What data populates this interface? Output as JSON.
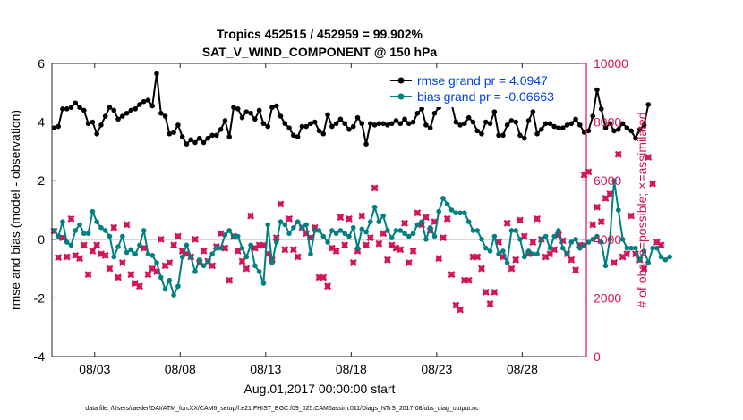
{
  "chart_data": {
    "type": "line",
    "title_line1": "Tropics 452515 / 452959 = 99.902%",
    "title_line2": "SAT_V_WIND_COMPONENT @ 150 hPa",
    "xlabel": "Aug.01,2017 00:00:00 start",
    "ylabel_left": "rmse and bias (model - observation)",
    "ylabel_right": "# of obs: o=possible; ×=assimilated",
    "ylim_left": [
      -4,
      6
    ],
    "yticks_left": [
      -4,
      -2,
      0,
      2,
      4,
      6
    ],
    "ylim_right": [
      0,
      10000
    ],
    "yticks_right": [
      0,
      2000,
      4000,
      6000,
      8000,
      10000
    ],
    "xlim": [
      0.5,
      31.75
    ],
    "xticks": [
      {
        "value": 3,
        "label": "08/03"
      },
      {
        "value": 8,
        "label": "08/08"
      },
      {
        "value": 13,
        "label": "08/13"
      },
      {
        "value": 18,
        "label": "08/18"
      },
      {
        "value": 23,
        "label": "08/23"
      },
      {
        "value": 28,
        "label": "08/28"
      }
    ],
    "x_start": 0.625,
    "x_step": 0.25,
    "colors": {
      "rmse": "#000000",
      "bias": "#008080",
      "obs": "#d4145a",
      "right_axis": "#d4145a",
      "zero_line": "#b0b0b0",
      "legend_text": "#0044dd"
    },
    "legend": [
      "rmse grand pr = 4.0947",
      "bias grand pr = -0.06663"
    ],
    "series": [
      {
        "name": "rmse",
        "values": [
          3.8,
          3.85,
          4.45,
          4.45,
          4.5,
          4.65,
          4.5,
          4.4,
          3.95,
          4.0,
          3.6,
          3.9,
          4.2,
          4.5,
          4.4,
          4.1,
          4.2,
          4.3,
          4.4,
          4.45,
          4.6,
          4.7,
          4.75,
          4.55,
          5.65,
          4.3,
          4.2,
          3.6,
          3.65,
          3.9,
          3.5,
          3.25,
          3.4,
          3.3,
          3.45,
          3.3,
          3.45,
          3.55,
          3.55,
          3.75,
          4.05,
          3.5,
          4.5,
          4.45,
          4.15,
          4.35,
          4.3,
          4.1,
          4.4,
          3.95,
          3.85,
          4.5,
          4.55,
          4.2,
          3.95,
          3.8,
          3.55,
          3.5,
          3.85,
          3.85,
          3.95,
          4.0,
          3.7,
          3.6,
          4.25,
          3.85,
          3.95,
          4.1,
          3.95,
          3.75,
          3.85,
          4.15,
          3.95,
          3.25,
          3.95,
          3.9,
          3.95,
          3.95,
          3.9,
          3.95,
          4.05,
          3.95,
          4.1,
          3.95,
          4.0,
          4.3,
          4.45,
          3.9,
          3.8,
          4.3,
          4.5,
          4.75,
          5.05,
          4.6,
          4.0,
          3.9,
          3.95,
          4.15,
          4.0,
          3.7,
          3.6,
          4.0,
          3.95,
          4.35,
          3.55,
          3.55,
          3.9,
          4.05,
          4.0,
          3.55,
          3.45,
          4.05,
          4.35,
          3.6,
          3.75,
          3.95,
          3.95,
          3.85,
          3.8,
          3.8,
          3.9,
          3.95,
          4.1,
          3.9,
          3.65,
          3.7,
          4.2,
          5.1,
          4.45,
          3.8,
          3.95,
          3.7,
          3.75,
          3.95,
          3.8,
          3.7,
          3.45,
          3.75,
          3.9,
          4.6
        ]
      },
      {
        "name": "bias",
        "values": [
          0.3,
          0.1,
          0.6,
          -0.1,
          -0.2,
          0.3,
          0.5,
          0.2,
          0.2,
          0.95,
          0.6,
          0.4,
          0.3,
          0.1,
          -0.6,
          -0.25,
          0.1,
          -0.45,
          -0.35,
          -0.5,
          -0.2,
          0.3,
          -0.5,
          -0.55,
          -0.8,
          -1.3,
          -1.7,
          -1.4,
          -1.9,
          -1.6,
          -0.6,
          -0.2,
          -0.6,
          -1.1,
          -0.7,
          -0.9,
          -0.75,
          -0.5,
          -0.3,
          -0.3,
          0.15,
          0.3,
          0.1,
          0.1,
          -0.3,
          -0.6,
          -0.2,
          -0.9,
          -1.1,
          -1.5,
          0.5,
          -0.8,
          -0.1,
          0.6,
          0.5,
          0.2,
          0.4,
          0.6,
          0.4,
          0.5,
          -0.5,
          0.3,
          0.3,
          0.1,
          -0.1,
          0.3,
          0.2,
          0.3,
          0.2,
          0.1,
          0.4,
          -0.3,
          0.35,
          0.25,
          0.6,
          1.1,
          0.6,
          0.8,
          0.3,
          0.05,
          0.3,
          0.3,
          0.2,
          0.1,
          0.2,
          0.5,
          0.6,
          0.0,
          0.4,
          0.1,
          0.95,
          1.4,
          1.2,
          1.0,
          0.9,
          0.9,
          0.9,
          0.6,
          0.3,
          0.3,
          0.0,
          -0.3,
          -0.4,
          0.1,
          -0.5,
          -0.4,
          -0.8,
          0.3,
          0.3,
          0.0,
          -0.6,
          -0.4,
          -0.5,
          -0.5,
          0.0,
          0.1,
          -0.3,
          0.1,
          0.3,
          -0.3,
          -0.5,
          -0.1,
          0.0,
          -0.3,
          -0.2,
          -0.1,
          0.0,
          0.1,
          -0.1,
          -0.9,
          0.0,
          2.0,
          1.0,
          0.0,
          -0.3,
          -0.3,
          -0.3,
          -0.7,
          -0.4,
          -0.8,
          -0.3,
          -0.3,
          -0.6,
          -0.7,
          -0.6
        ]
      },
      {
        "name": "obs_count",
        "values": [
          4280,
          3380,
          4050,
          3400,
          4700,
          3450,
          3350,
          3800,
          2800,
          3600,
          3800,
          3500,
          3450,
          3000,
          4400,
          2700,
          3200,
          4500,
          2800,
          2500,
          2400,
          3700,
          2800,
          3000,
          2900,
          4000,
          3100,
          3200,
          3800,
          4100,
          3600,
          3500,
          3400,
          4000,
          3200,
          3600,
          3250,
          3100,
          3750,
          4200,
          3700,
          2600,
          4100,
          3600,
          3250,
          3000,
          4800,
          3700,
          3800,
          3800,
          3500,
          3300,
          4050,
          5200,
          3650,
          4700,
          3650,
          3400,
          4400,
          4200,
          4050,
          4400,
          2700,
          2700,
          2400,
          3700,
          3600,
          4750,
          3800,
          4700,
          3200,
          3600,
          4800,
          3800,
          4050,
          5750,
          3850,
          4200,
          3300,
          3800,
          3700,
          3650,
          4550,
          3200,
          3600,
          4900,
          4500,
          4750,
          4300,
          4600,
          3350,
          4050,
          4700,
          2800,
          1750,
          1600,
          2600,
          2600,
          3400,
          3400,
          3000,
          2200,
          1800,
          2200,
          3900,
          3400,
          4550,
          3000,
          3300,
          4650,
          4100,
          3500,
          3900,
          4700,
          4000,
          3400,
          3500,
          3650,
          4150,
          3950,
          3500,
          3300,
          2950,
          3800,
          6200,
          6300,
          4500,
          5100,
          4600,
          5400,
          5550,
          3200,
          6900,
          3400,
          3500,
          4800,
          3500,
          3300,
          3000,
          6800,
          5900,
          3900,
          3800
        ]
      }
    ]
  },
  "footer": "data file: /Users/raeder/DAI/ATM_forcXX/CAM6_setup/f.e21.FHIST_BGC.f09_025.CAM6assim.011/Diags_NTrS_2017-08/obs_diag_output.nc"
}
